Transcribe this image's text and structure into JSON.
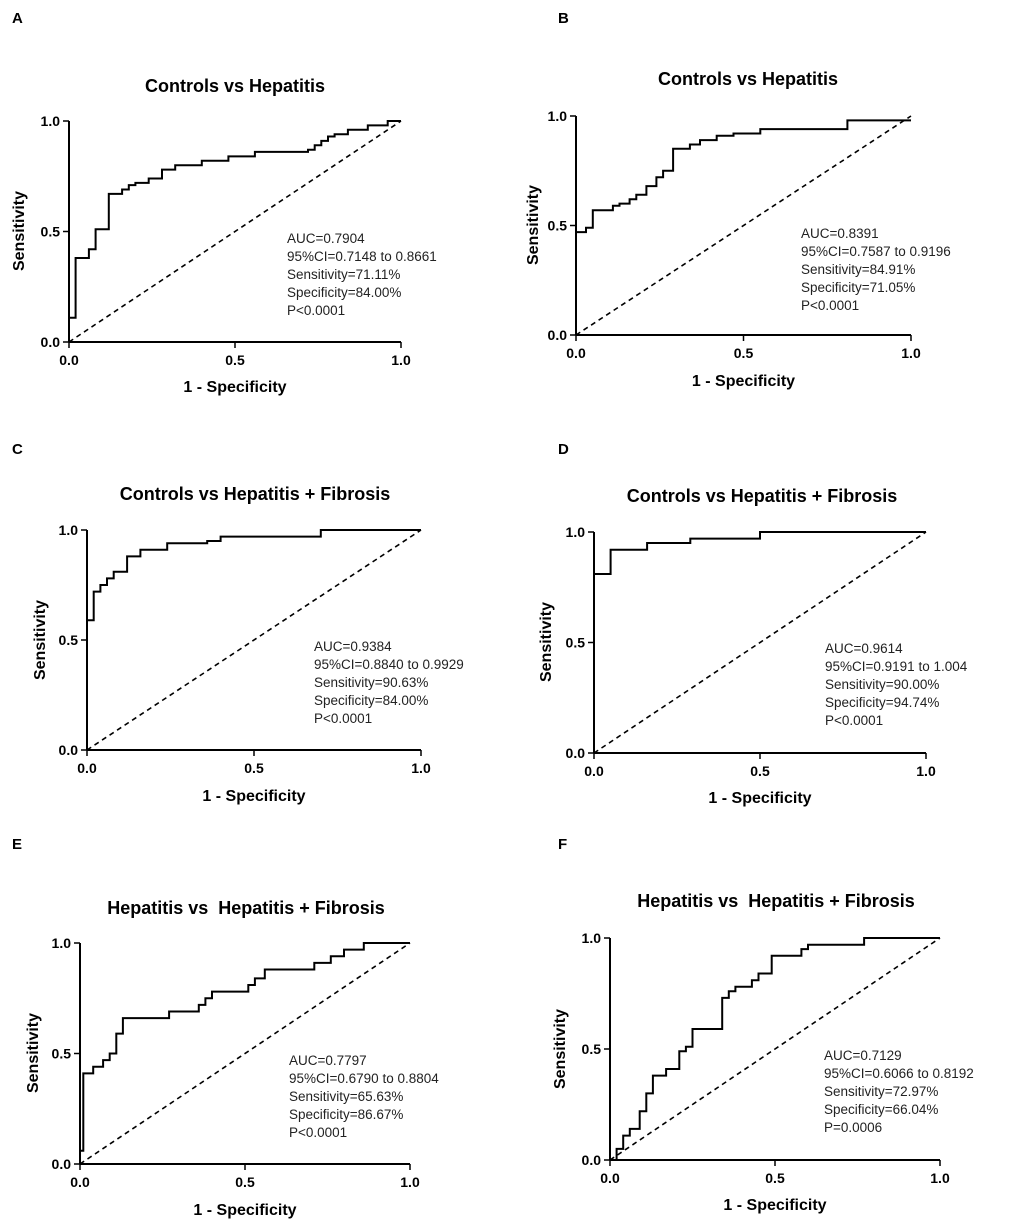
{
  "chart_data": [
    {
      "panel": "A",
      "type": "line",
      "title": "Controls vs Hepatitis",
      "xlabel": "1 - Specificity",
      "ylabel": "Sensitivity",
      "xlim": [
        0,
        1
      ],
      "ylim": [
        0,
        1
      ],
      "xticks": [
        "0.0",
        "0.5",
        "1.0"
      ],
      "yticks": [
        "0.0",
        "0.5",
        "1.0"
      ],
      "reference_line": true,
      "stats": [
        "AUC=0.7904",
        "95%CI=0.7148 to 0.8661",
        "Sensitivity=71.11%",
        "Specificity=84.00%",
        "P<0.0001"
      ],
      "x": [
        0,
        0,
        0.02,
        0.02,
        0.06,
        0.06,
        0.08,
        0.08,
        0.12,
        0.12,
        0.16,
        0.16,
        0.18,
        0.18,
        0.2,
        0.2,
        0.24,
        0.24,
        0.28,
        0.28,
        0.32,
        0.32,
        0.4,
        0.4,
        0.48,
        0.48,
        0.56,
        0.56,
        0.72,
        0.72,
        0.74,
        0.74,
        0.76,
        0.76,
        0.78,
        0.78,
        0.8,
        0.8,
        0.84,
        0.84,
        0.9,
        0.9,
        0.96,
        0.96,
        1
      ],
      "y": [
        0,
        0.11,
        0.11,
        0.38,
        0.38,
        0.42,
        0.42,
        0.51,
        0.51,
        0.67,
        0.67,
        0.69,
        0.69,
        0.71,
        0.71,
        0.72,
        0.72,
        0.74,
        0.74,
        0.78,
        0.78,
        0.8,
        0.8,
        0.82,
        0.82,
        0.84,
        0.84,
        0.86,
        0.86,
        0.87,
        0.87,
        0.89,
        0.89,
        0.91,
        0.91,
        0.93,
        0.93,
        0.94,
        0.94,
        0.96,
        0.96,
        0.98,
        0.98,
        1.0,
        1.0
      ]
    },
    {
      "panel": "B",
      "type": "line",
      "title": "Controls vs Hepatitis",
      "xlabel": "1 - Specificity",
      "ylabel": "Sensitivity",
      "xlim": [
        0,
        1
      ],
      "ylim": [
        0,
        1
      ],
      "xticks": [
        "0.0",
        "0.5",
        "1.0"
      ],
      "yticks": [
        "0.0",
        "0.5",
        "1.0"
      ],
      "reference_line": true,
      "stats": [
        "AUC=0.8391",
        "95%CI=0.7587 to 0.9196",
        "Sensitivity=84.91%",
        "Specificity=71.05%",
        "P<0.0001"
      ],
      "x": [
        0,
        0,
        0.03,
        0.03,
        0.05,
        0.05,
        0.11,
        0.11,
        0.13,
        0.13,
        0.16,
        0.16,
        0.18,
        0.18,
        0.21,
        0.21,
        0.24,
        0.24,
        0.26,
        0.26,
        0.29,
        0.29,
        0.34,
        0.34,
        0.37,
        0.37,
        0.42,
        0.42,
        0.47,
        0.47,
        0.55,
        0.55,
        0.81,
        0.81,
        1
      ],
      "y": [
        0,
        0.47,
        0.47,
        0.49,
        0.49,
        0.57,
        0.57,
        0.59,
        0.59,
        0.6,
        0.6,
        0.62,
        0.62,
        0.64,
        0.64,
        0.68,
        0.68,
        0.72,
        0.72,
        0.75,
        0.75,
        0.85,
        0.85,
        0.87,
        0.87,
        0.89,
        0.89,
        0.91,
        0.91,
        0.92,
        0.92,
        0.94,
        0.94,
        0.98,
        0.98
      ]
    },
    {
      "panel": "C",
      "type": "line",
      "title": "Controls vs Hepatitis + Fibrosis",
      "xlabel": "1 - Specificity",
      "ylabel": "Sensitivity",
      "xlim": [
        0,
        1
      ],
      "ylim": [
        0,
        1
      ],
      "xticks": [
        "0.0",
        "0.5",
        "1.0"
      ],
      "yticks": [
        "0.0",
        "0.5",
        "1.0"
      ],
      "reference_line": true,
      "stats": [
        "AUC=0.9384",
        "95%CI=0.8840 to 0.9929",
        "Sensitivity=90.63%",
        "Specificity=84.00%",
        "P<0.0001"
      ],
      "x": [
        0,
        0,
        0.02,
        0.02,
        0.04,
        0.04,
        0.06,
        0.06,
        0.08,
        0.08,
        0.12,
        0.12,
        0.16,
        0.16,
        0.24,
        0.24,
        0.36,
        0.36,
        0.4,
        0.4,
        0.7,
        0.7,
        1
      ],
      "y": [
        0,
        0.59,
        0.59,
        0.72,
        0.72,
        0.75,
        0.75,
        0.78,
        0.78,
        0.81,
        0.81,
        0.88,
        0.88,
        0.91,
        0.91,
        0.94,
        0.94,
        0.95,
        0.95,
        0.97,
        0.97,
        1.0,
        1.0
      ]
    },
    {
      "panel": "D",
      "type": "line",
      "title": "Controls vs Hepatitis + Fibrosis",
      "xlabel": "1 - Specificity",
      "ylabel": "Sensitivity",
      "xlim": [
        0,
        1
      ],
      "ylim": [
        0,
        1
      ],
      "xticks": [
        "0.0",
        "0.5",
        "1.0"
      ],
      "yticks": [
        "0.0",
        "0.5",
        "1.0"
      ],
      "reference_line": true,
      "stats": [
        "AUC=0.9614",
        "95%CI=0.9191 to 1.004",
        "Sensitivity=90.00%",
        "Specificity=94.74%",
        "P<0.0001"
      ],
      "x": [
        0,
        0,
        0.05,
        0.05,
        0.16,
        0.16,
        0.29,
        0.29,
        0.5,
        0.5,
        1
      ],
      "y": [
        0,
        0.81,
        0.81,
        0.92,
        0.92,
        0.95,
        0.95,
        0.97,
        0.97,
        1.0,
        1.0
      ]
    },
    {
      "panel": "E",
      "type": "line",
      "title": "Hepatitis vs  Hepatitis + Fibrosis",
      "xlabel": "1 - Specificity",
      "ylabel": "Sensitivity",
      "xlim": [
        0,
        1
      ],
      "ylim": [
        0,
        1
      ],
      "xticks": [
        "0.0",
        "0.5",
        "1.0"
      ],
      "yticks": [
        "0.0",
        "0.5",
        "1.0"
      ],
      "reference_line": true,
      "stats": [
        "AUC=0.7797",
        "95%CI=0.6790 to 0.8804",
        "Sensitivity=65.63%",
        "Specificity=86.67%",
        "P<0.0001"
      ],
      "x": [
        0,
        0,
        0.01,
        0.01,
        0.04,
        0.04,
        0.07,
        0.07,
        0.09,
        0.09,
        0.11,
        0.11,
        0.13,
        0.13,
        0.27,
        0.27,
        0.36,
        0.36,
        0.38,
        0.38,
        0.4,
        0.4,
        0.51,
        0.51,
        0.53,
        0.53,
        0.56,
        0.56,
        0.71,
        0.71,
        0.76,
        0.76,
        0.8,
        0.8,
        0.86,
        0.86,
        0.91,
        0.91,
        1
      ],
      "y": [
        0,
        0.06,
        0.06,
        0.41,
        0.41,
        0.44,
        0.44,
        0.47,
        0.47,
        0.5,
        0.5,
        0.59,
        0.59,
        0.66,
        0.66,
        0.69,
        0.69,
        0.72,
        0.72,
        0.75,
        0.75,
        0.78,
        0.78,
        0.81,
        0.81,
        0.84,
        0.84,
        0.88,
        0.88,
        0.91,
        0.91,
        0.94,
        0.94,
        0.97,
        0.97,
        1.0,
        1.0,
        1.0,
        1.0
      ]
    },
    {
      "panel": "F",
      "type": "line",
      "title": "Hepatitis vs  Hepatitis + Fibrosis",
      "xlabel": "1 - Specificity",
      "ylabel": "Sensitivity",
      "xlim": [
        0,
        1
      ],
      "ylim": [
        0,
        1
      ],
      "xticks": [
        "0.0",
        "0.5",
        "1.0"
      ],
      "yticks": [
        "0.0",
        "0.5",
        "1.0"
      ],
      "reference_line": true,
      "stats": [
        "AUC=0.7129",
        "95%CI=0.6066 to 0.8192",
        "Sensitivity=72.97%",
        "Specificity=66.04%",
        "P=0.0006"
      ],
      "x": [
        0,
        0.02,
        0.02,
        0.04,
        0.04,
        0.06,
        0.06,
        0.09,
        0.09,
        0.11,
        0.11,
        0.13,
        0.13,
        0.17,
        0.17,
        0.21,
        0.21,
        0.23,
        0.23,
        0.25,
        0.25,
        0.28,
        0.28,
        0.34,
        0.34,
        0.36,
        0.36,
        0.38,
        0.38,
        0.43,
        0.43,
        0.45,
        0.45,
        0.47,
        0.47,
        0.49,
        0.49,
        0.55,
        0.55,
        0.58,
        0.58,
        0.6,
        0.6,
        0.77,
        0.77,
        0.92,
        0.92,
        1
      ],
      "y": [
        0,
        0,
        0.05,
        0.05,
        0.11,
        0.11,
        0.14,
        0.14,
        0.22,
        0.22,
        0.3,
        0.3,
        0.38,
        0.38,
        0.41,
        0.41,
        0.49,
        0.49,
        0.51,
        0.51,
        0.59,
        0.59,
        0.59,
        0.59,
        0.73,
        0.73,
        0.76,
        0.76,
        0.78,
        0.78,
        0.81,
        0.81,
        0.84,
        0.84,
        0.84,
        0.84,
        0.92,
        0.92,
        0.92,
        0.92,
        0.95,
        0.95,
        0.97,
        0.97,
        1.0,
        1.0,
        1.0,
        1.0
      ]
    }
  ]
}
